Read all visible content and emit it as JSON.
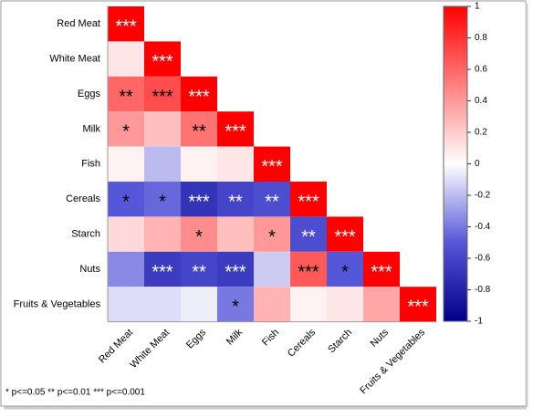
{
  "chart_data": {
    "type": "heatmap",
    "categories": [
      "Red Meat",
      "White Meat",
      "Eggs",
      "Milk",
      "Fish",
      "Cereals",
      "Starch",
      "Nuts",
      "Fruits & Vegetables"
    ],
    "values": [
      [
        1
      ],
      [
        0.1,
        1
      ],
      [
        0.6,
        0.7,
        1
      ],
      [
        0.4,
        0.25,
        0.55,
        1
      ],
      [
        0.05,
        -0.2,
        0.05,
        0.1,
        1
      ],
      [
        -0.5,
        -0.45,
        -0.7,
        -0.6,
        -0.55,
        1
      ],
      [
        0.15,
        0.3,
        0.45,
        0.25,
        0.4,
        -0.55,
        1
      ],
      [
        -0.35,
        -0.65,
        -0.6,
        -0.65,
        -0.15,
        0.65,
        -0.5,
        1
      ],
      [
        -0.1,
        -0.1,
        -0.05,
        -0.4,
        0.3,
        0.05,
        0.1,
        0.35,
        1
      ]
    ],
    "significance": [
      [
        "***"
      ],
      [
        null,
        "***"
      ],
      [
        "**",
        "***",
        "***"
      ],
      [
        "*",
        null,
        "**",
        "***"
      ],
      [
        null,
        null,
        null,
        null,
        "***"
      ],
      [
        "*",
        "*",
        "***",
        "**",
        "**",
        "***"
      ],
      [
        null,
        null,
        "*",
        null,
        "*",
        "**",
        "***"
      ],
      [
        null,
        "***",
        "**",
        "***",
        null,
        "***",
        "*",
        "***"
      ],
      [
        null,
        null,
        null,
        "*",
        null,
        null,
        null,
        null,
        "***"
      ]
    ],
    "colorscale": [
      [
        -1,
        "#00008b"
      ],
      [
        -0.5,
        "#5656d8"
      ],
      [
        0,
        "#ffffff"
      ],
      [
        1,
        "#ff0000"
      ]
    ],
    "clim": [
      -1,
      1
    ],
    "cticks": [
      1,
      0.8,
      0.6,
      0.4,
      0.2,
      0,
      -0.2,
      -0.4,
      -0.6,
      -0.8,
      -1
    ],
    "footnote": "* p<=0.05  ** p<=0.01  *** p<=0.001"
  }
}
